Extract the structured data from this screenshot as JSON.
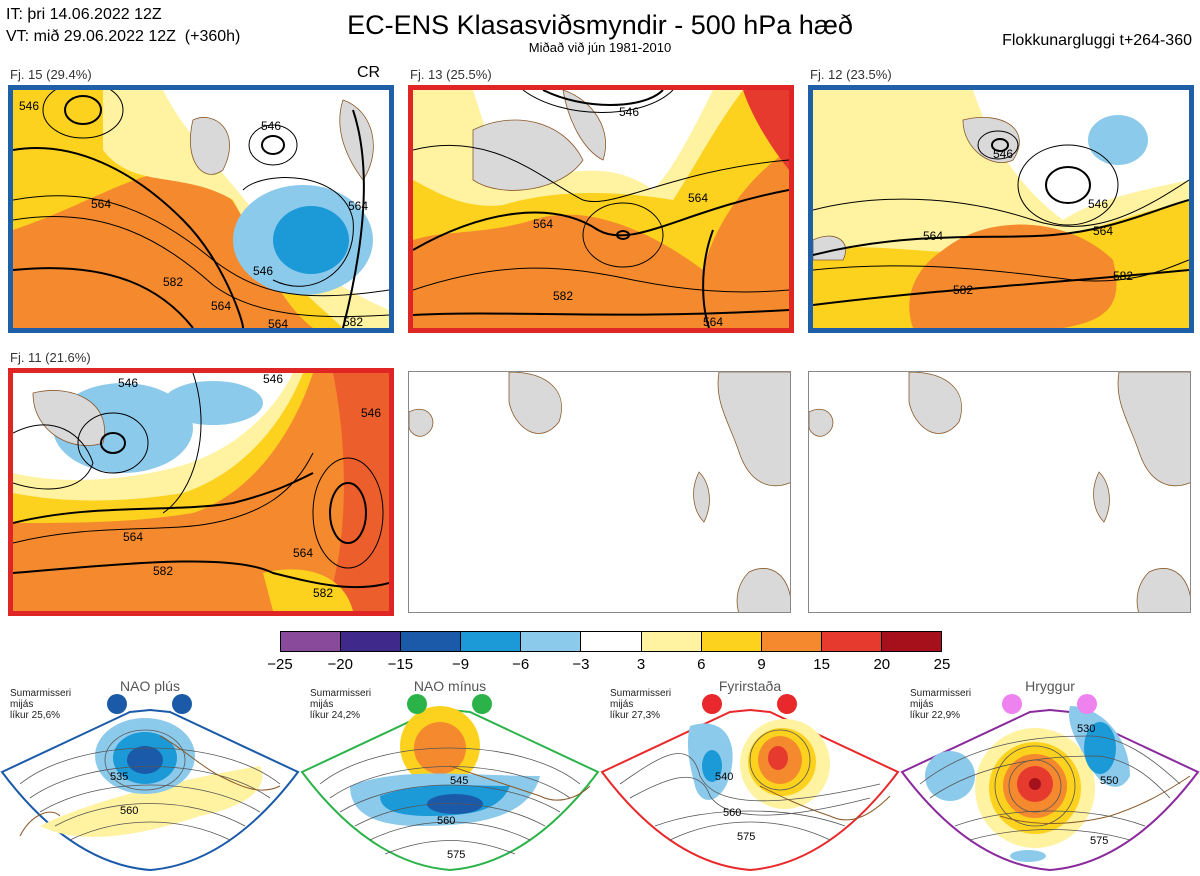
{
  "header": {
    "it_line": "IT: þri 14.06.2022 12Z",
    "vt_line": "VT: mið 29.06.2022 12Z  (+360h)",
    "title": "EC-ENS Klasasviðsmyndir - 500 hPa hæð",
    "subtitle": "Miðað við jún 1981-2010",
    "window": "Flokkunargluggi t+264-360"
  },
  "panels": [
    {
      "label": "Fj. 15 (29.4%)",
      "tag": "CR",
      "border": "#1f5fa8",
      "contours": [
        "564",
        "546",
        "582",
        "564",
        "546",
        "564",
        "582",
        "546",
        "564"
      ]
    },
    {
      "label": "Fj. 13 (25.5%)",
      "tag": "",
      "border": "#e02525",
      "contours": [
        "546",
        "564",
        "582",
        "564",
        "564"
      ]
    },
    {
      "label": "Fj. 12 (23.5%)",
      "tag": "",
      "border": "#1f5fa8",
      "contours": [
        "546",
        "546",
        "564",
        "564",
        "582",
        "582"
      ]
    },
    {
      "label": "Fj. 11 (21.6%)",
      "tag": "",
      "border": "#e02525",
      "contours": [
        "546",
        "546",
        "546",
        "564",
        "564",
        "582",
        "582"
      ]
    }
  ],
  "colorbar": {
    "colors": [
      "#8a4a9c",
      "#3f2a8c",
      "#1a5aa8",
      "#1c9ad8",
      "#8ccaec",
      "#ffffff",
      "#fff2a0",
      "#fdd21e",
      "#f5892e",
      "#e63a2e",
      "#a5101a"
    ],
    "ticks": [
      "−25",
      "−20",
      "−15",
      "−9",
      "−6",
      "−3",
      "3",
      "6",
      "9",
      "15",
      "20",
      "25"
    ]
  },
  "regimes": [
    {
      "name": "NAO plús",
      "info": [
        "Sumarmisseri",
        "mijás",
        "líkur 25,6%"
      ],
      "dot_color": "#1a5aa8",
      "border": "#1a5aa8",
      "contours": [
        "535",
        "560"
      ]
    },
    {
      "name": "NAO mínus",
      "info": [
        "Sumarmisseri",
        "mijás",
        "líkur 24,2%"
      ],
      "dot_color": "#2bb34a",
      "border": "#2bb34a",
      "contours": [
        "545",
        "560",
        "575"
      ]
    },
    {
      "name": "Fyrirstaða",
      "info": [
        "Sumarmisseri",
        "mijás",
        "líkur 27,3%"
      ],
      "dot_color": "#e8282a",
      "border": "#e8282a",
      "contours": [
        "540",
        "560",
        "575"
      ]
    },
    {
      "name": "Hryggur",
      "info": [
        "Sumarmisseri",
        "mijás",
        "líkur 22,9%"
      ],
      "dot_color": "#ee82ee",
      "border": "#8a2a9c",
      "contours": [
        "530",
        "550",
        "575"
      ]
    }
  ]
}
